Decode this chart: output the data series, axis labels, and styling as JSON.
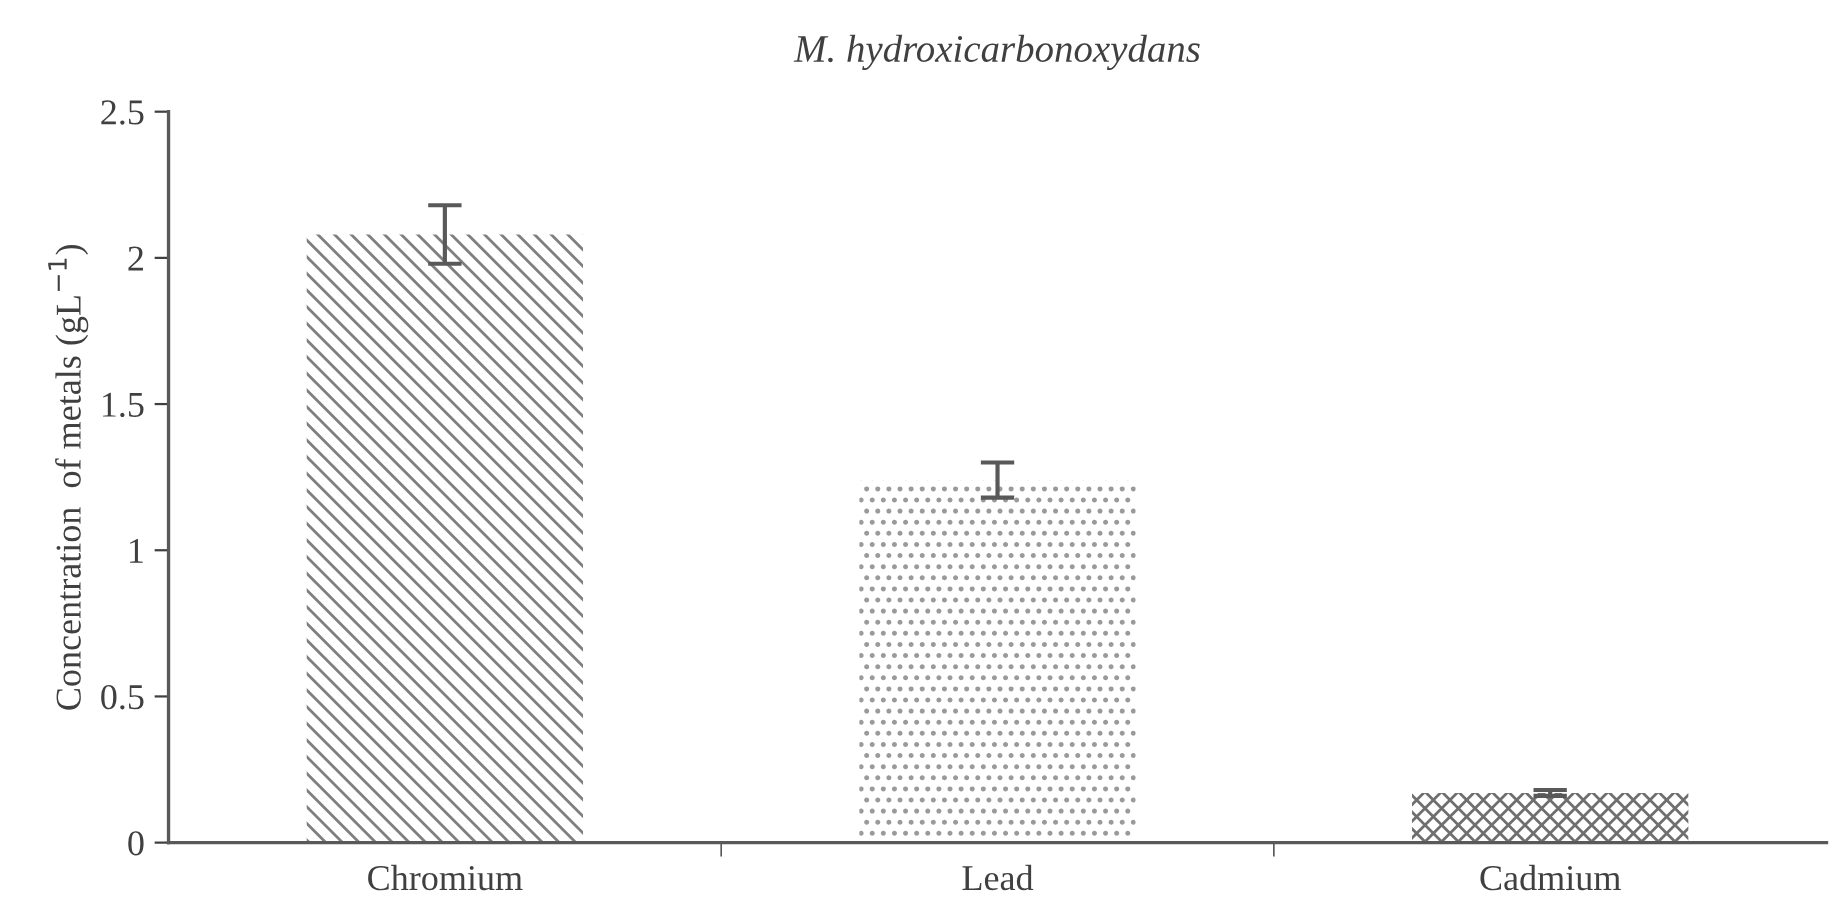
{
  "chart_data": {
    "type": "bar",
    "title": "M. hydroxicarbonoxydans",
    "ylabel": "Concentration  of metals (gL$^{−1}$)",
    "categories": [
      "Chromium",
      "Lead",
      "Cadmium"
    ],
    "values": [
      2.08,
      1.24,
      0.17
    ],
    "errors": [
      0.1,
      0.06,
      0.01
    ],
    "colors": [
      "#7f7f7f",
      "#9a9a9a",
      "#6f6f6f"
    ],
    "ylim": [
      0,
      2.5
    ],
    "yticks": [
      0,
      0.5,
      1,
      1.5,
      2,
      2.5
    ],
    "grid": false,
    "legend": false
  }
}
